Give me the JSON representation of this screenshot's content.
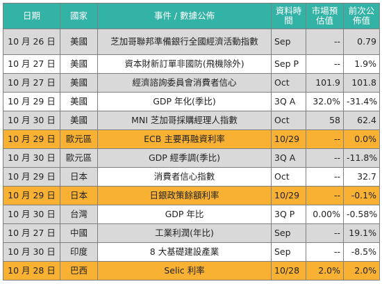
{
  "table": {
    "headers": {
      "date": "日期",
      "country": "國家",
      "event": "事件 / 數據公佈",
      "period": "資料時間",
      "forecast": "市場預估值",
      "previous": "前次公佈值"
    },
    "rows": [
      {
        "date": "10 月 26 日",
        "country": "美國",
        "event": "芝加哥聯邦準備銀行全國經濟活動指數",
        "period": "Sep",
        "forecast": "--",
        "previous": "0.79",
        "style": "gray"
      },
      {
        "date": "10 月 27 日",
        "country": "美國",
        "event": "資本財新訂單非國防(飛機除外)",
        "period": "Sep P",
        "forecast": "--",
        "previous": "1.9%",
        "style": "white"
      },
      {
        "date": "10 月 27 日",
        "country": "美國",
        "event": "經濟諮詢委員會消費者信心",
        "period": "Oct",
        "forecast": "101.9",
        "previous": "101.8",
        "style": "gray"
      },
      {
        "date": "10 月 29 日",
        "country": "美國",
        "event": "GDP 年化(季比)",
        "period": "3Q A",
        "forecast": "32.0%",
        "previous": "-31.4%",
        "style": "white"
      },
      {
        "date": "10 月 30 日",
        "country": "美國",
        "event": "MNI 芝加哥採購經理人指數",
        "period": "Oct",
        "forecast": "58",
        "previous": "62.4",
        "style": "gray"
      },
      {
        "date": "10 月 29 日",
        "country": "歐元區",
        "event": "ECB 主要再融資利率",
        "period": "10/29",
        "forecast": "--",
        "previous": "0.0%",
        "style": "orange"
      },
      {
        "date": "10 月 30 日",
        "country": "歐元區",
        "event": "GDP 經季調(季比)",
        "period": "3Q A",
        "forecast": "--",
        "previous": "-11.8%",
        "style": "gray"
      },
      {
        "date": "10 月 29 日",
        "country": "日本",
        "event": "消費者信心指數",
        "period": "Oct",
        "forecast": "--",
        "previous": "32.7",
        "style": "mixed"
      },
      {
        "date": "10 月 29 日",
        "country": "日本",
        "event": "日銀政策餘額利率",
        "period": "10/29",
        "forecast": "--",
        "previous": "-0.1%",
        "style": "orange"
      },
      {
        "date": "10 月 30 日",
        "country": "台灣",
        "event": "GDP 年比",
        "period": "3Q P",
        "forecast": "0.00%",
        "previous": "-0.58%",
        "style": "mixed"
      },
      {
        "date": "10 月 27 日",
        "country": "中國",
        "event": "工業利潤(年比)",
        "period": "Sep",
        "forecast": "--",
        "previous": "19.1%",
        "style": "gray"
      },
      {
        "date": "10 月 30 日",
        "country": "印度",
        "event": "8 大基礎建設產業",
        "period": "Sep",
        "forecast": "--",
        "previous": "-8.5%",
        "style": "mixed"
      },
      {
        "date": "10 月 28 日",
        "country": "巴西",
        "event": "Selic 利率",
        "period": "10/28",
        "forecast": "2.0%",
        "previous": "2.0%",
        "style": "orange"
      }
    ]
  },
  "colors": {
    "header": "#33b2a6",
    "gray_row": "#d9d9d9",
    "highlight_row": "#f8b133",
    "border": "#7f7f7f"
  }
}
